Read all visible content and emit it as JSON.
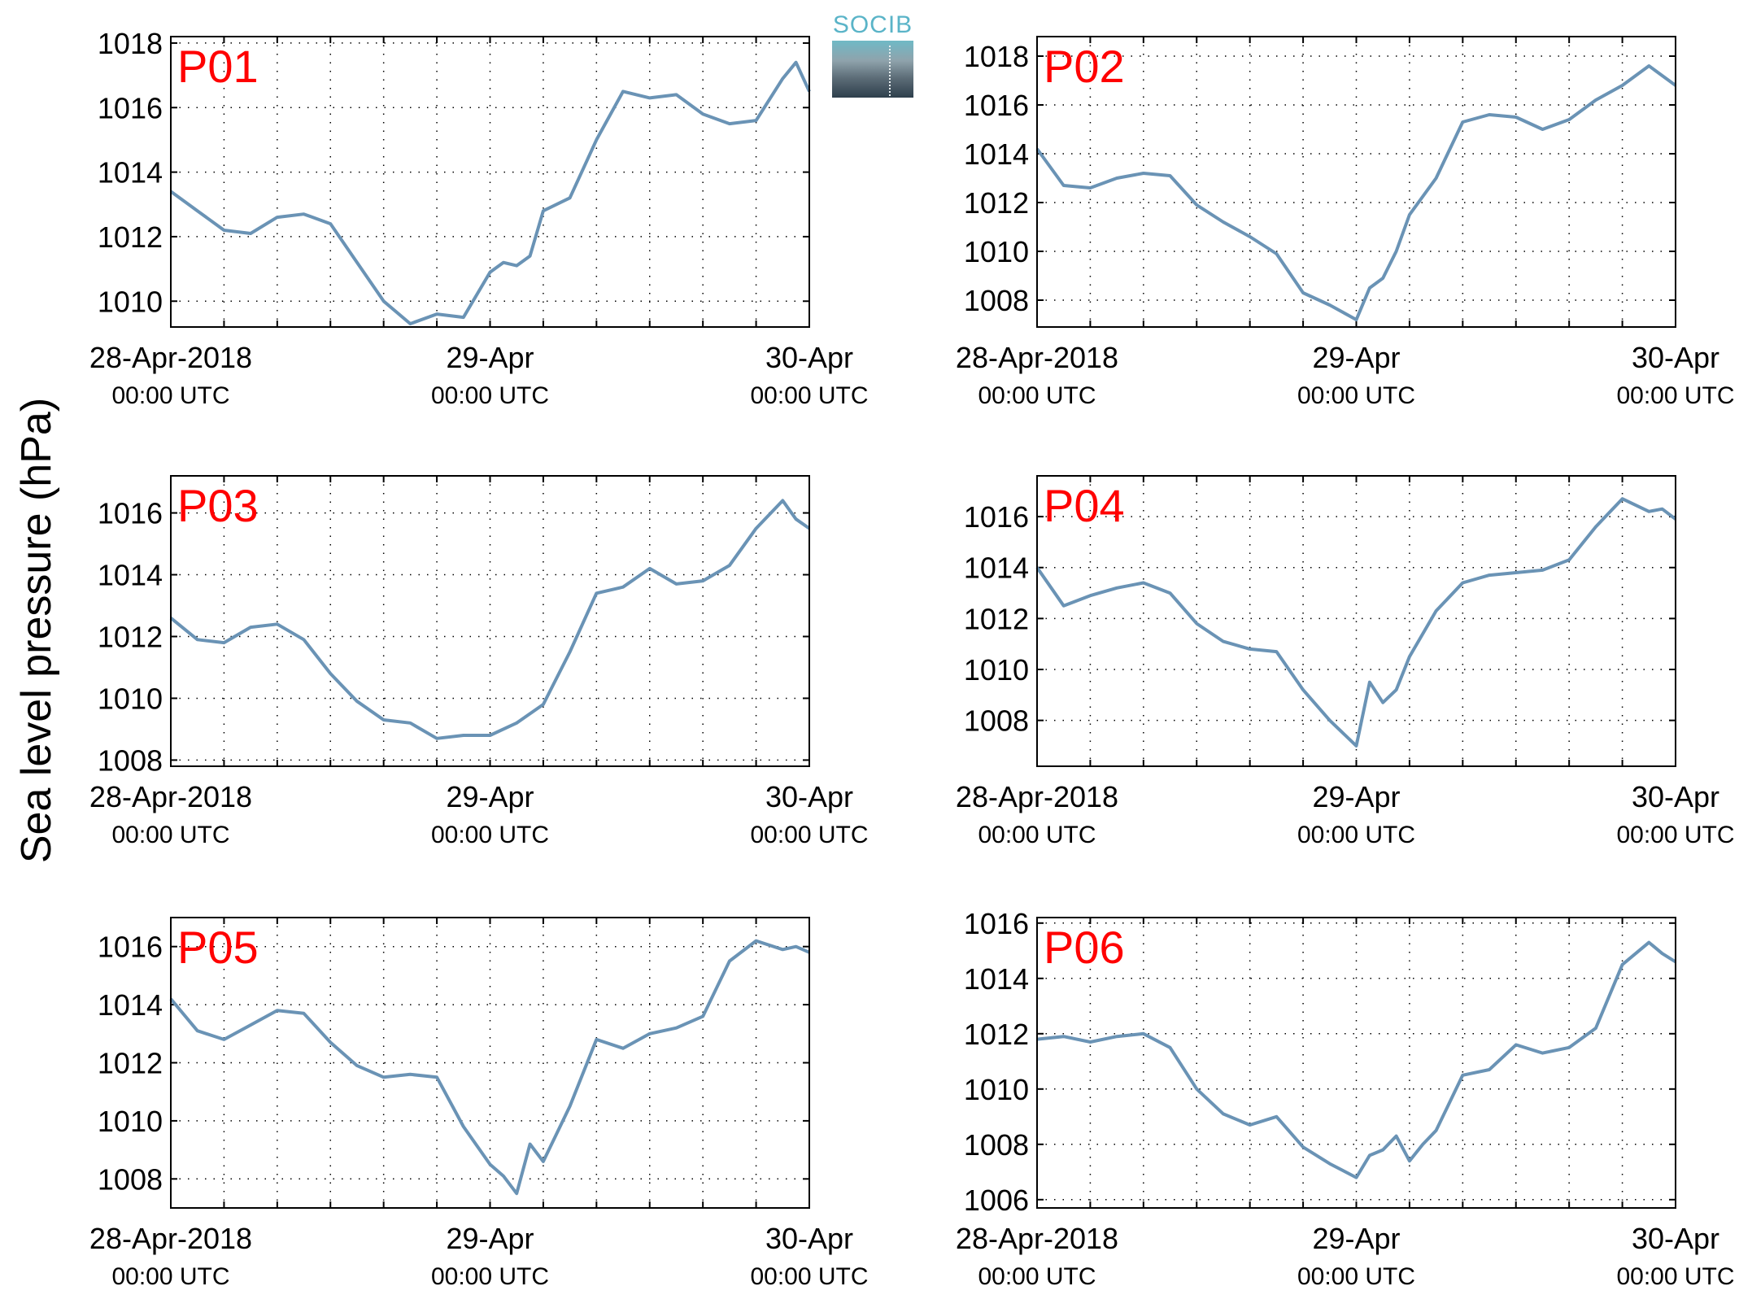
{
  "figure": {
    "ylabel": "Sea level pressure (hPa)",
    "logo_text": "SOCIB"
  },
  "x_tick_labels": [
    {
      "date": "28-Apr-2018",
      "time": "00:00 UTC"
    },
    {
      "date": "29-Apr",
      "time": "00:00 UTC"
    },
    {
      "date": "30-Apr",
      "time": "00:00 UTC"
    }
  ],
  "colors": {
    "series": "#6a93b5",
    "panel_label": "#ff0000",
    "axes": "#000000"
  },
  "chart_data": [
    {
      "type": "line",
      "panel_label": "P01",
      "xlim": [
        "2018-04-28 00:00",
        "2018-04-30 00:00"
      ],
      "ylim": [
        1009.2,
        1018.2
      ],
      "yticks": [
        1010,
        1012,
        1014,
        1016,
        1018
      ],
      "grid": "dotted",
      "x_hours": [
        0,
        2,
        4,
        6,
        8,
        10,
        12,
        14,
        16,
        18,
        20,
        22,
        24,
        25,
        26,
        27,
        28,
        30,
        32,
        34,
        36,
        38,
        40,
        42,
        44,
        46,
        47,
        48
      ],
      "values": [
        1013.4,
        1012.8,
        1012.2,
        1012.1,
        1012.6,
        1012.7,
        1012.4,
        1011.2,
        1010.0,
        1009.3,
        1009.6,
        1009.5,
        1010.9,
        1011.2,
        1011.1,
        1011.4,
        1012.8,
        1013.2,
        1015.0,
        1016.5,
        1016.3,
        1016.4,
        1015.8,
        1015.5,
        1015.6,
        1016.9,
        1017.4,
        1016.5
      ]
    },
    {
      "type": "line",
      "panel_label": "P02",
      "xlim": [
        "2018-04-28 00:00",
        "2018-04-30 00:00"
      ],
      "ylim": [
        1006.9,
        1018.8
      ],
      "yticks": [
        1008,
        1010,
        1012,
        1014,
        1016,
        1018
      ],
      "grid": "dotted",
      "x_hours": [
        0,
        2,
        4,
        6,
        8,
        10,
        12,
        14,
        16,
        18,
        20,
        22,
        24,
        25,
        26,
        27,
        28,
        30,
        32,
        34,
        36,
        38,
        40,
        42,
        44,
        46,
        47,
        48
      ],
      "values": [
        1014.2,
        1012.7,
        1012.6,
        1013.0,
        1013.2,
        1013.1,
        1011.9,
        1011.2,
        1010.6,
        1009.9,
        1008.3,
        1007.8,
        1007.2,
        1008.5,
        1008.9,
        1010.0,
        1011.5,
        1013.0,
        1015.3,
        1015.6,
        1015.5,
        1015.0,
        1015.4,
        1016.2,
        1016.8,
        1017.6,
        1017.2,
        1016.8
      ]
    },
    {
      "type": "line",
      "panel_label": "P03",
      "xlim": [
        "2018-04-28 00:00",
        "2018-04-30 00:00"
      ],
      "ylim": [
        1007.8,
        1017.2
      ],
      "yticks": [
        1008,
        1010,
        1012,
        1014,
        1016
      ],
      "grid": "dotted",
      "x_hours": [
        0,
        2,
        4,
        6,
        8,
        10,
        12,
        14,
        16,
        18,
        20,
        22,
        24,
        26,
        28,
        30,
        32,
        34,
        36,
        38,
        40,
        42,
        44,
        46,
        47,
        48
      ],
      "values": [
        1012.6,
        1011.9,
        1011.8,
        1012.3,
        1012.4,
        1011.9,
        1010.8,
        1009.9,
        1009.3,
        1009.2,
        1008.7,
        1008.8,
        1008.8,
        1009.2,
        1009.8,
        1011.5,
        1013.4,
        1013.6,
        1014.2,
        1013.7,
        1013.8,
        1014.3,
        1015.5,
        1016.4,
        1015.8,
        1015.5
      ]
    },
    {
      "type": "line",
      "panel_label": "P04",
      "xlim": [
        "2018-04-28 00:00",
        "2018-04-30 00:00"
      ],
      "ylim": [
        1006.2,
        1017.6
      ],
      "yticks": [
        1008,
        1010,
        1012,
        1014,
        1016
      ],
      "grid": "dotted",
      "x_hours": [
        0,
        2,
        4,
        6,
        8,
        10,
        12,
        14,
        16,
        18,
        20,
        22,
        24,
        25,
        26,
        27,
        28,
        30,
        32,
        34,
        36,
        38,
        40,
        42,
        44,
        46,
        47,
        48
      ],
      "values": [
        1014.0,
        1012.5,
        1012.9,
        1013.2,
        1013.4,
        1013.0,
        1011.8,
        1011.1,
        1010.8,
        1010.7,
        1009.2,
        1008.0,
        1007.0,
        1009.5,
        1008.7,
        1009.2,
        1010.5,
        1012.3,
        1013.4,
        1013.7,
        1013.8,
        1013.9,
        1014.3,
        1015.6,
        1016.7,
        1016.2,
        1016.3,
        1015.9
      ]
    },
    {
      "type": "line",
      "panel_label": "P05",
      "xlim": [
        "2018-04-28 00:00",
        "2018-04-30 00:00"
      ],
      "ylim": [
        1007.0,
        1017.0
      ],
      "yticks": [
        1008,
        1010,
        1012,
        1014,
        1016
      ],
      "grid": "dotted",
      "x_hours": [
        0,
        2,
        4,
        6,
        8,
        10,
        12,
        14,
        16,
        18,
        20,
        22,
        24,
        25,
        26,
        27,
        28,
        30,
        32,
        34,
        36,
        38,
        40,
        42,
        44,
        46,
        47,
        48
      ],
      "values": [
        1014.2,
        1013.1,
        1012.8,
        1013.3,
        1013.8,
        1013.7,
        1012.7,
        1011.9,
        1011.5,
        1011.6,
        1011.5,
        1009.8,
        1008.5,
        1008.1,
        1007.5,
        1009.2,
        1008.6,
        1010.5,
        1012.8,
        1012.5,
        1013.0,
        1013.2,
        1013.6,
        1015.5,
        1016.2,
        1015.9,
        1016.0,
        1015.8
      ]
    },
    {
      "type": "line",
      "panel_label": "P06",
      "xlim": [
        "2018-04-28 00:00",
        "2018-04-30 00:00"
      ],
      "ylim": [
        1005.7,
        1016.2
      ],
      "yticks": [
        1006,
        1008,
        1010,
        1012,
        1014,
        1016
      ],
      "grid": "dotted",
      "x_hours": [
        0,
        2,
        4,
        6,
        8,
        10,
        12,
        14,
        16,
        18,
        20,
        22,
        24,
        25,
        26,
        27,
        28,
        29,
        30,
        32,
        34,
        36,
        38,
        40,
        42,
        44,
        46,
        47,
        48
      ],
      "values": [
        1011.8,
        1011.9,
        1011.7,
        1011.9,
        1012.0,
        1011.5,
        1010.0,
        1009.1,
        1008.7,
        1009.0,
        1007.9,
        1007.3,
        1006.8,
        1007.6,
        1007.8,
        1008.3,
        1007.4,
        1008.0,
        1008.5,
        1010.5,
        1010.7,
        1011.6,
        1011.3,
        1011.5,
        1012.2,
        1014.5,
        1015.3,
        1014.9,
        1014.6
      ]
    }
  ]
}
